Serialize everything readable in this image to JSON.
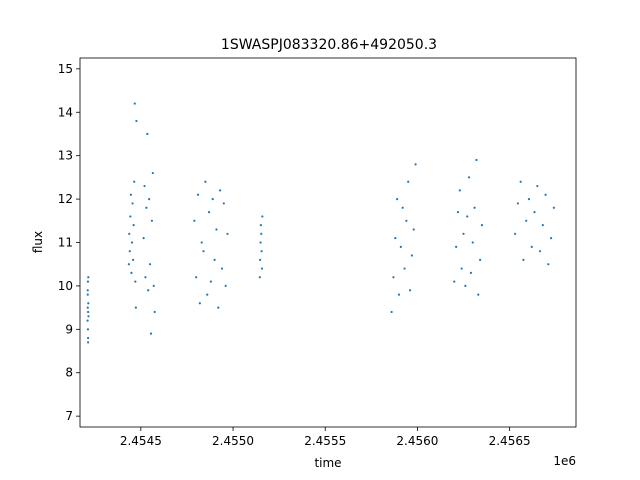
{
  "chart_data": {
    "type": "scatter",
    "title": "1SWASPJ083320.86+492050.3",
    "xlabel": "time",
    "ylabel": "flux",
    "x_offset_label": "1e6",
    "xlim": [
      2454170,
      2456860
    ],
    "ylim": [
      6.75,
      15.25
    ],
    "x_ticks": [
      2454500,
      2455000,
      2455500,
      2456000,
      2456500
    ],
    "x_tick_labels": [
      "2.4545",
      "2.4550",
      "2.4555",
      "2.4560",
      "2.4565"
    ],
    "y_ticks": [
      7,
      8,
      9,
      10,
      11,
      12,
      13,
      14,
      15
    ],
    "y_tick_labels": [
      "7",
      "8",
      "9",
      "10",
      "11",
      "12",
      "13",
      "14",
      "15"
    ],
    "grid": false,
    "marker_color": "#1f77b4",
    "series": [
      {
        "x": [
          2454211,
          2454212,
          2454212,
          2454213,
          2454213,
          2454214,
          2454214,
          2454215,
          2454215,
          2454216,
          2454214,
          2454212,
          2454435,
          2454437,
          2454440,
          2454443,
          2454446,
          2454449,
          2454452,
          2454455,
          2454458,
          2454461,
          2454464,
          2454467,
          2454470,
          2454473,
          2454476,
          2454515,
          2454520,
          2454525,
          2454530,
          2454535,
          2454540,
          2454545,
          2454550,
          2454555,
          2454560,
          2454565,
          2454570,
          2454575,
          2454790,
          2454800,
          2454810,
          2454820,
          2454830,
          2454840,
          2454850,
          2454860,
          2454870,
          2454880,
          2454890,
          2454900,
          2454910,
          2454920,
          2454930,
          2454940,
          2454950,
          2454960,
          2454970,
          2455145,
          2455147,
          2455149,
          2455151,
          2455153,
          2455155,
          2455157,
          2455159,
          2455860,
          2455870,
          2455880,
          2455890,
          2455900,
          2455910,
          2455920,
          2455930,
          2455940,
          2455950,
          2455960,
          2455970,
          2455980,
          2455990,
          2456200,
          2456210,
          2456220,
          2456230,
          2456240,
          2456250,
          2456260,
          2456270,
          2456280,
          2456290,
          2456300,
          2456310,
          2456320,
          2456330,
          2456340,
          2456350,
          2456530,
          2456545,
          2456560,
          2456575,
          2456590,
          2456605,
          2456620,
          2456635,
          2456650,
          2456665,
          2456680,
          2456695,
          2456710,
          2456725,
          2456740
        ],
        "y": [
          9.2,
          9.5,
          9.8,
          10.1,
          9.0,
          8.8,
          9.4,
          9.6,
          10.2,
          9.3,
          8.7,
          9.9,
          10.5,
          11.2,
          10.8,
          11.6,
          12.1,
          10.3,
          11.0,
          11.9,
          10.6,
          11.4,
          12.4,
          14.2,
          10.1,
          9.5,
          13.8,
          11.1,
          12.3,
          10.2,
          11.8,
          13.5,
          9.9,
          12.0,
          10.5,
          8.9,
          11.5,
          12.6,
          10.0,
          9.4,
          11.5,
          10.2,
          12.1,
          9.6,
          11.0,
          10.8,
          12.4,
          9.8,
          11.7,
          10.1,
          12.0,
          10.6,
          11.3,
          9.5,
          12.2,
          10.4,
          11.9,
          10.0,
          11.2,
          10.2,
          10.6,
          11.0,
          11.4,
          11.2,
          10.8,
          10.4,
          11.6,
          9.4,
          10.2,
          11.1,
          12.0,
          9.8,
          10.9,
          11.8,
          10.4,
          11.5,
          12.4,
          9.9,
          10.7,
          11.3,
          12.8,
          10.1,
          10.9,
          11.7,
          12.2,
          10.4,
          11.2,
          10.0,
          11.6,
          12.5,
          10.3,
          11.0,
          11.8,
          12.9,
          9.8,
          10.6,
          11.4,
          11.2,
          11.9,
          12.4,
          10.6,
          11.5,
          12.0,
          10.9,
          11.7,
          12.3,
          10.8,
          11.4,
          12.1,
          10.5,
          11.1,
          11.8
        ]
      }
    ]
  }
}
